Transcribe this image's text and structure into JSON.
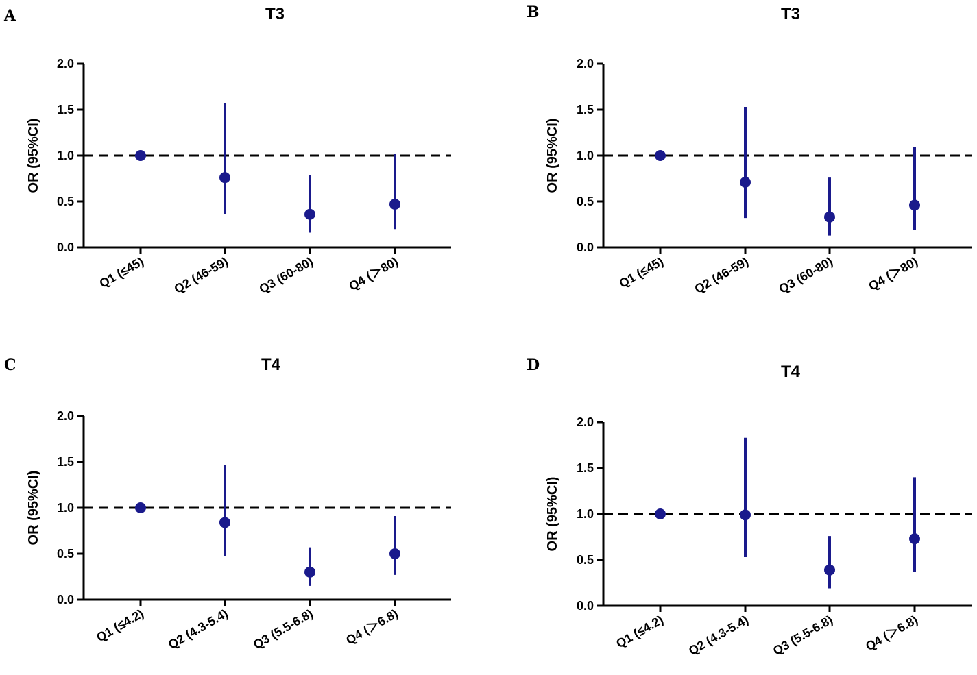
{
  "colors": {
    "point": "#1a1a8c",
    "axis": "#000000"
  },
  "chart_data": [
    {
      "panel": "A",
      "type": "scatter",
      "title": "T3",
      "ylabel": "OR  (95%CI)",
      "ylim": [
        0,
        2.0
      ],
      "yticks": [
        "0.0",
        "0.5",
        "1.0",
        "1.5",
        "2.0"
      ],
      "reference_line": 1.0,
      "categories": [
        "Q1 (≤45)",
        "Q2 (46-59)",
        "Q3 (60-80)",
        "Q4 (＞80)"
      ],
      "or": [
        1.0,
        0.76,
        0.36,
        0.47
      ],
      "ci_low": [
        1.0,
        0.36,
        0.16,
        0.2
      ],
      "ci_high": [
        1.0,
        1.57,
        0.79,
        1.02
      ]
    },
    {
      "panel": "B",
      "type": "scatter",
      "title": "T3",
      "ylabel": "OR  (95%CI)",
      "ylim": [
        0,
        2.0
      ],
      "yticks": [
        "0.0",
        "0.5",
        "1.0",
        "1.5",
        "2.0"
      ],
      "reference_line": 1.0,
      "categories": [
        "Q1 (≤45)",
        "Q2 (46-59)",
        "Q3 (60-80)",
        "Q4 (＞80)"
      ],
      "or": [
        1.0,
        0.71,
        0.33,
        0.46
      ],
      "ci_low": [
        1.0,
        0.32,
        0.13,
        0.19
      ],
      "ci_high": [
        1.0,
        1.53,
        0.76,
        1.09
      ]
    },
    {
      "panel": "C",
      "type": "scatter",
      "title": "T4",
      "ylabel": "OR  (95%CI)",
      "ylim": [
        0,
        2.0
      ],
      "yticks": [
        "0.0",
        "0.5",
        "1.0",
        "1.5",
        "2.0"
      ],
      "reference_line": 1.0,
      "categories": [
        "Q1 (≤4.2)",
        "Q2 (4.3-5.4)",
        "Q3 (5.5-6.8)",
        "Q4 (＞6.8)"
      ],
      "or": [
        1.0,
        0.84,
        0.3,
        0.5
      ],
      "ci_low": [
        1.0,
        0.47,
        0.15,
        0.27
      ],
      "ci_high": [
        1.0,
        1.47,
        0.57,
        0.91
      ]
    },
    {
      "panel": "D",
      "type": "scatter",
      "title": "T4",
      "ylabel": "OR  (95%CI)",
      "ylim": [
        0,
        2.0
      ],
      "yticks": [
        "0.0",
        "0.5",
        "1.0",
        "1.5",
        "2.0"
      ],
      "reference_line": 1.0,
      "categories": [
        "Q1 (≤4.2)",
        "Q2 (4.3-5.4)",
        "Q3 (5.5-6.8)",
        "Q4 (＞6.8)"
      ],
      "or": [
        1.0,
        0.99,
        0.39,
        0.73
      ],
      "ci_low": [
        1.0,
        0.53,
        0.19,
        0.37
      ],
      "ci_high": [
        1.0,
        1.83,
        0.76,
        1.4
      ]
    }
  ]
}
